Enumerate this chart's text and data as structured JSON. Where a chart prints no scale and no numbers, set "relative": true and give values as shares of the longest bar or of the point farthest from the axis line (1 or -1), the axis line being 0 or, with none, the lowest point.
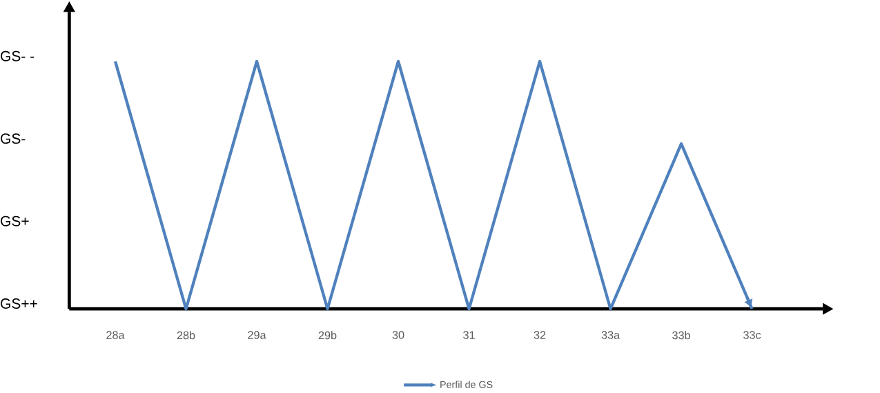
{
  "chart_data": {
    "type": "line",
    "relative": true,
    "categories": [
      "28a",
      "28b",
      "29a",
      "29b",
      "30",
      "31",
      "32",
      "33a",
      "33b",
      "33c"
    ],
    "series": [
      {
        "name": "Perfil de GS",
        "color": "#4f81bd",
        "values": [
          1,
          0,
          1,
          0,
          1,
          0,
          1,
          0,
          0.667,
          0
        ]
      }
    ],
    "annotations": [
      "GS++",
      "GS+",
      "GS-",
      "GS- -"
    ],
    "legend": "bottom",
    "marker": "none",
    "line_style": "solid",
    "grid": false
  }
}
